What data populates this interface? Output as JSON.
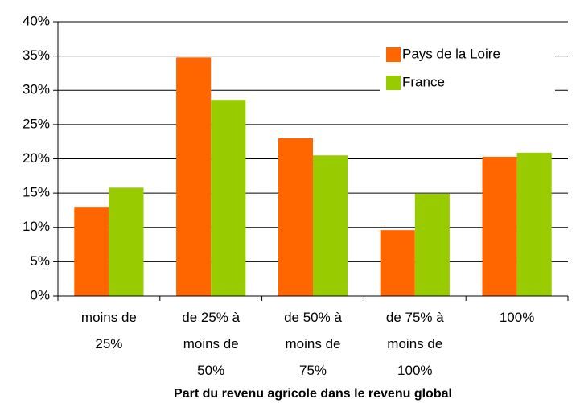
{
  "chart_data": {
    "type": "bar",
    "x_label": "Part du revenu agricole dans le revenu global",
    "categories": [
      "moins de\n25%",
      "de 25% à\nmoins de\n50%",
      "de 50% à\nmoins de\n75%",
      "de 75% à\nmoins de\n100%",
      "100%"
    ],
    "series": [
      {
        "name": "Pays de la Loire",
        "color": "#ff6600",
        "values": [
          13,
          34.8,
          23,
          9.6,
          20.3
        ]
      },
      {
        "name": "France",
        "color": "#99cc00",
        "values": [
          15.8,
          28.6,
          20.5,
          14.9,
          20.9
        ]
      }
    ],
    "ylim": [
      0,
      40
    ],
    "yticks": [
      {
        "value": 0,
        "label": "0%"
      },
      {
        "value": 5,
        "label": "5%"
      },
      {
        "value": 10,
        "label": "10%"
      },
      {
        "value": 15,
        "label": "15%"
      },
      {
        "value": 20,
        "label": "20%"
      },
      {
        "value": 25,
        "label": "25%"
      },
      {
        "value": 30,
        "label": "30%"
      },
      {
        "value": 35,
        "label": "35%"
      },
      {
        "value": 40,
        "label": "40%"
      }
    ],
    "grid": true,
    "legend": "upper right"
  }
}
